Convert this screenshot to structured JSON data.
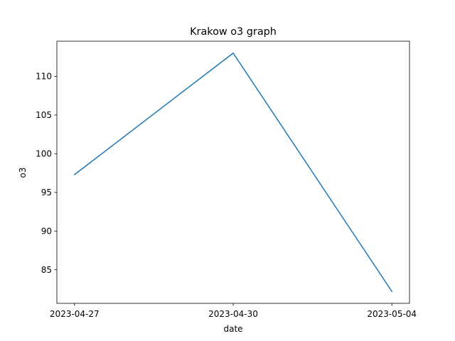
{
  "chart_data": {
    "type": "line",
    "title": "Krakow o3 graph",
    "xlabel": "date",
    "ylabel": "o3",
    "categories": [
      "2023-04-27",
      "2023-04-30",
      "2023-05-04"
    ],
    "series": [
      {
        "name": "o3",
        "values": [
          97.3,
          113.0,
          82.2
        ],
        "color": "#1f77b4"
      }
    ],
    "ylim": [
      80.66,
      114.54
    ],
    "yticks": [
      85,
      90,
      95,
      100,
      105,
      110
    ],
    "grid": false
  }
}
